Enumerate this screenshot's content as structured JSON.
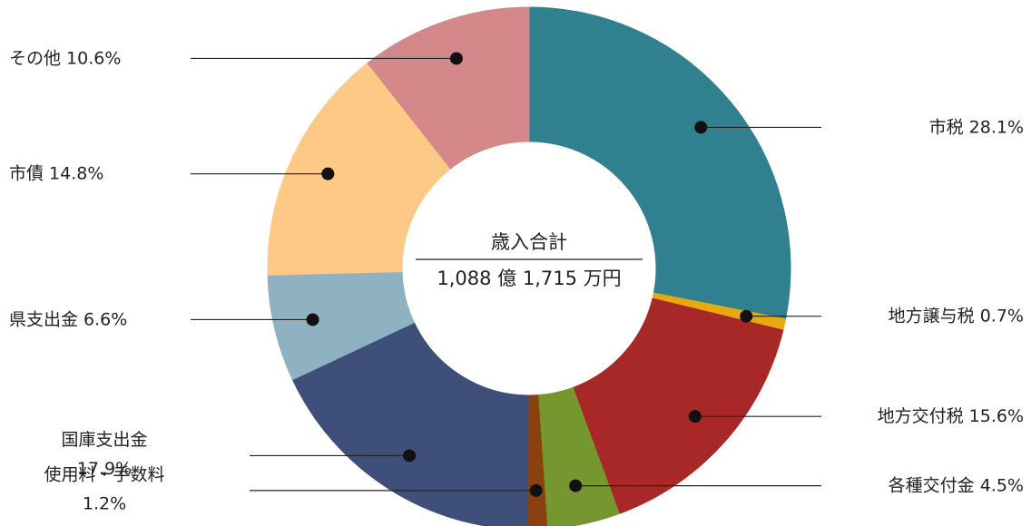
{
  "chart_data": {
    "type": "pie",
    "center_title": "歳入合計",
    "center_text": "1,088 億 1,715 万円",
    "categories": [
      "市税",
      "地方譲与税",
      "地方交付税",
      "各種交付金",
      "使用料・手数料",
      "国庫支出金",
      "県支出金",
      "市債",
      "その他"
    ],
    "values": [
      28.1,
      0.7,
      15.6,
      4.5,
      1.2,
      17.9,
      6.6,
      14.8,
      10.6
    ],
    "value_labels": [
      "28.1%",
      "0.7%",
      "15.6%",
      "4.5%",
      "1.2%",
      "17.9%",
      "6.6%",
      "14.8%",
      "10.6%"
    ],
    "colors": [
      "#31808f",
      "#e8a812",
      "#a82828",
      "#76962f",
      "#8b4010",
      "#3e4f7a",
      "#8fb2c2",
      "#fdc987",
      "#d4888a"
    ]
  }
}
